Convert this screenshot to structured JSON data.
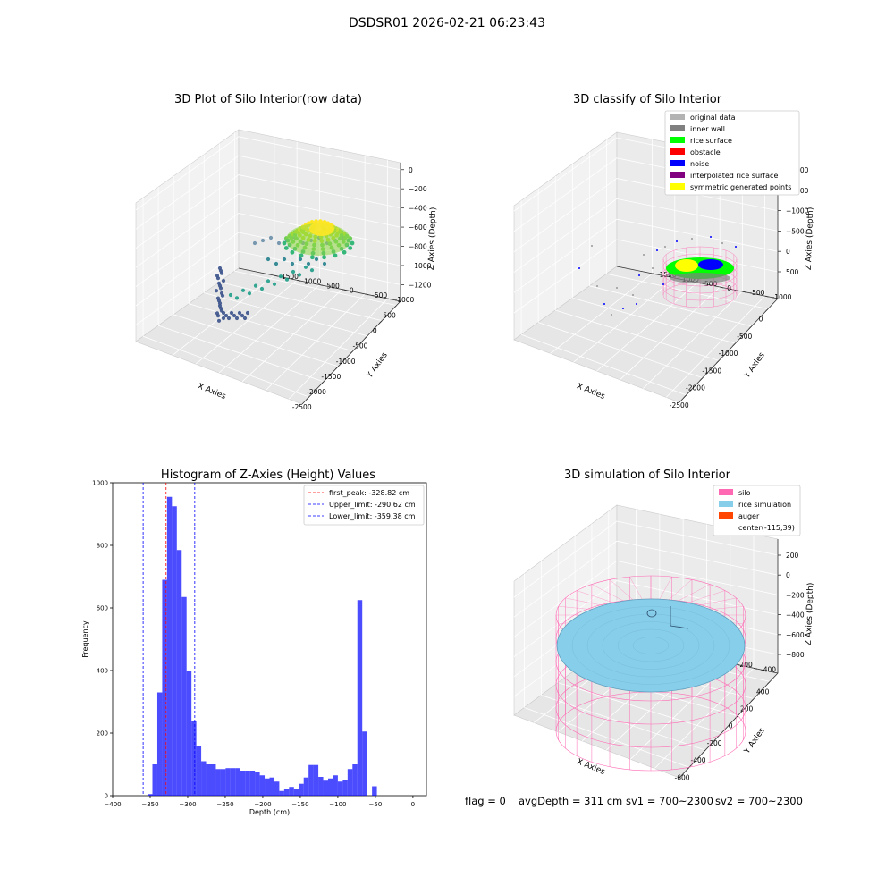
{
  "figure": {
    "suptitle": "DSDSR01 2026-02-21 06:23:43",
    "status": {
      "flag": "flag = 0",
      "avg_depth": "avgDepth = 311 cm",
      "sv1": "sv1 = 700~2300",
      "sv2": "sv2 = 700~2300"
    }
  },
  "chart_data": [
    {
      "type": "scatter",
      "title": "3D Plot of Silo Interior(row data)",
      "xlabel": "X Axies",
      "ylabel": "Y Axies",
      "zlabel": "Z Axies (Depth)",
      "x_ticks": [
        "-2500",
        "-2000",
        "-1500",
        "-1000",
        "-500",
        "0",
        "500"
      ],
      "y_ticks": [
        "-1000",
        "-500",
        "0",
        "500",
        "1000",
        "1500"
      ],
      "z_ticks": [
        "0",
        "−200",
        "−400",
        "−600",
        "−800",
        "−1000",
        "−1200"
      ],
      "colormap": "viridis"
    },
    {
      "type": "scatter",
      "title": "3D classify of Silo Interior",
      "xlabel": "X Axies",
      "ylabel": "Y Axies",
      "zlabel": "Z Axies (Depth)",
      "x_ticks": [
        "-2500",
        "-2000",
        "-1500",
        "-1000",
        "-500",
        "0"
      ],
      "y_ticks": [
        "-1000",
        "-500",
        "0",
        "500",
        "1000",
        "1500"
      ],
      "z_ticks": [
        "500",
        "0",
        "−500",
        "−1000",
        "−1500",
        "−2000"
      ],
      "legend": [
        {
          "label": "original data",
          "color": "#b3b3b3"
        },
        {
          "label": "inner wall",
          "color": "#808080"
        },
        {
          "label": "rice surface",
          "color": "#00ff00"
        },
        {
          "label": "obstacle",
          "color": "#ff0000"
        },
        {
          "label": "noise",
          "color": "#0000ff"
        },
        {
          "label": "interpolated rice surface",
          "color": "#800080"
        },
        {
          "label": "symmetric generated points",
          "color": "#ffff00"
        }
      ]
    },
    {
      "type": "bar",
      "title": "Histogram of Z-Axies (Height) Values",
      "xlabel": "Depth (cm)",
      "ylabel": "Frequency",
      "xlim": [
        -400,
        18
      ],
      "ylim": [
        0,
        1000
      ],
      "x_ticks": [
        "−400",
        "−350",
        "−300",
        "−250",
        "−200",
        "−150",
        "−100",
        "−50",
        "0"
      ],
      "y_ticks": [
        "0",
        "200",
        "400",
        "600",
        "800",
        "1000"
      ],
      "bar_color": "#0000ff",
      "bin_width": 6.5,
      "bin_start": -353.5,
      "values": [
        5,
        100,
        330,
        690,
        955,
        925,
        785,
        635,
        400,
        240,
        160,
        110,
        100,
        100,
        85,
        85,
        88,
        88,
        88,
        80,
        80,
        80,
        75,
        65,
        55,
        58,
        45,
        15,
        20,
        28,
        22,
        38,
        58,
        98,
        98,
        60,
        48,
        55,
        65,
        45,
        50,
        85,
        100,
        625,
        205,
        0,
        30
      ],
      "lines": [
        {
          "label": "first_peak: -328.82 cm",
          "x": -328.82,
          "color": "#ff0000"
        },
        {
          "label": "Upper_limit: -290.62 cm",
          "x": -290.62,
          "color": "#0000ff"
        },
        {
          "label": "Lower_limit: -359.38 cm",
          "x": -359.38,
          "color": "#0000ff"
        }
      ],
      "legend_position": "upper right"
    },
    {
      "type": "scatter",
      "title": "3D simulation of Silo Interior",
      "xlabel": "X Axies",
      "ylabel": "Y Axies",
      "zlabel": "Z Axies (Depth)",
      "x_ticks": [
        "-600",
        "-400",
        "-200",
        "0",
        "200",
        "400"
      ],
      "y_ticks": [
        "-400",
        "-200",
        "0",
        "200",
        "400",
        "600"
      ],
      "z_ticks": [
        "200",
        "0",
        "−200",
        "−400",
        "−600",
        "−800"
      ],
      "legend": [
        {
          "label": "silo",
          "color": "#ff69b4"
        },
        {
          "label": "rice simulation",
          "color": "#87ceeb"
        },
        {
          "label": "auger",
          "color": "#ff4500"
        },
        {
          "label": "center(-115,39)",
          "color": ""
        }
      ]
    }
  ]
}
